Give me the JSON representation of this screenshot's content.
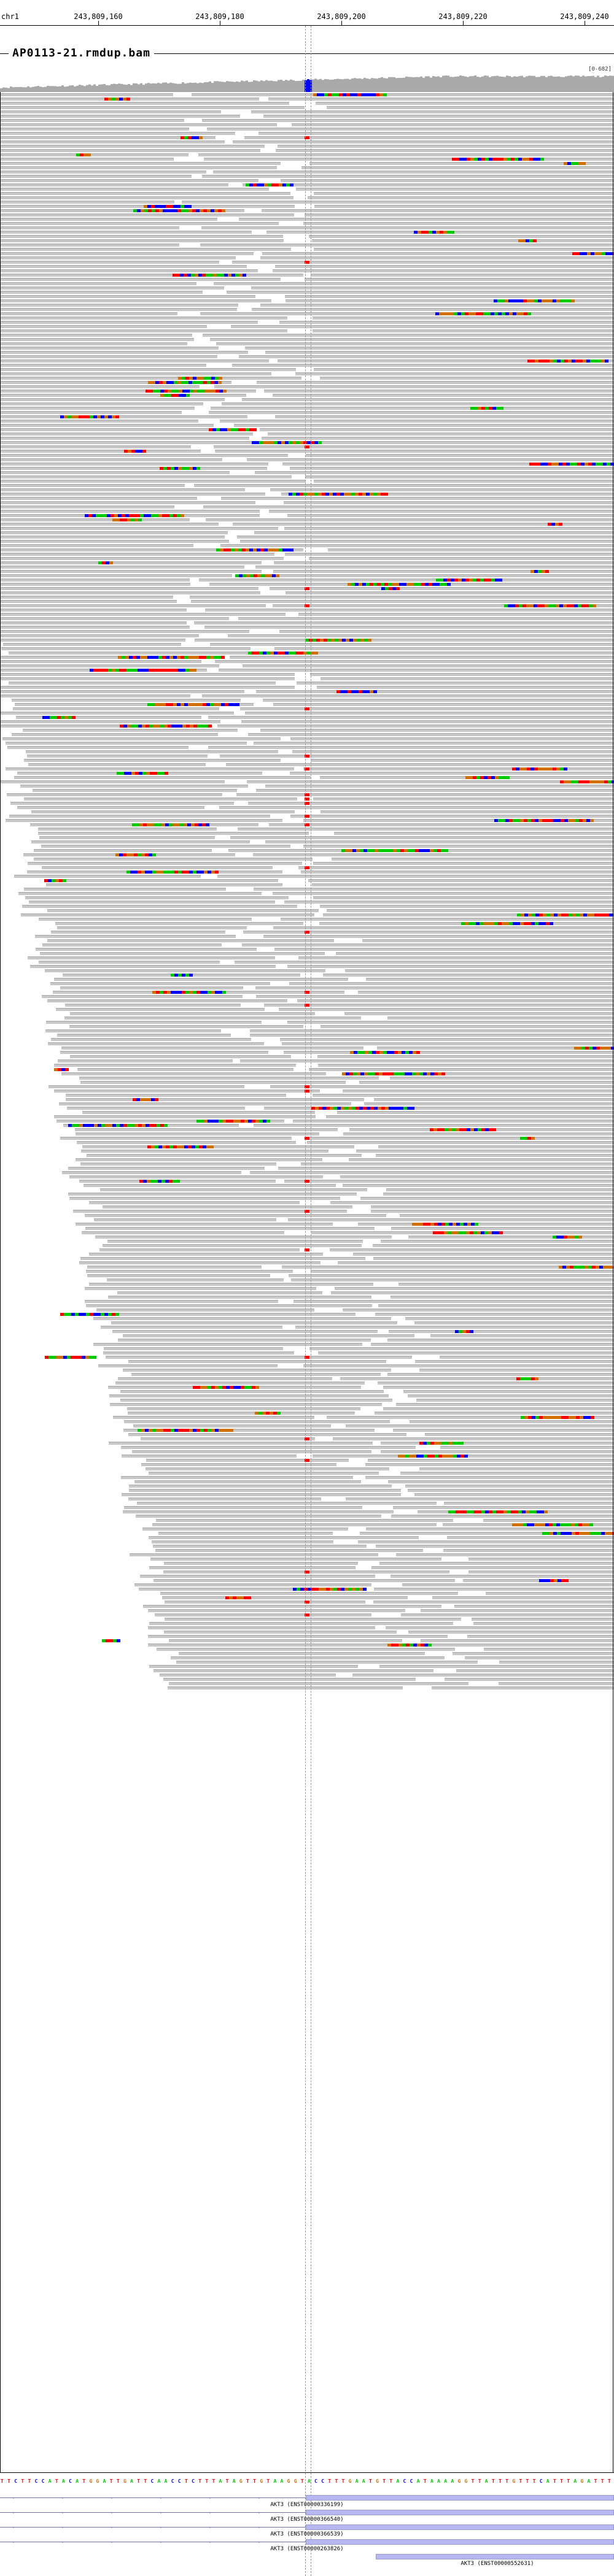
{
  "ruler": {
    "chromosome": "chr1",
    "ticks": [
      "243,809,160",
      "243,809,180",
      "243,809,200",
      "243,809,220",
      "243,809,240"
    ]
  },
  "track": {
    "title": "AP0113-21.rmdup.bam",
    "coverage_max": "[0-682]"
  },
  "colors": {
    "read": "#c8c8c8",
    "read_border": "#a8a8a8",
    "A": "#00cc00",
    "C": "#0000ff",
    "G": "#d17105",
    "T": "#ff0000",
    "coverage": "#a9a9a9"
  },
  "sequence": "TTCTTCCATACATGGATTGATTCAACCTCTTTATAGTTGTAAGGTACCTTTGAATGTTACCATAAAAGGTTATTTGTTTCATTTAGATTT",
  "genes": [
    {
      "label": "AKT3 (ENST00000336199)"
    },
    {
      "label": "AKT3 (ENST00000366540)"
    },
    {
      "label": "AKT3 (ENST00000366539)"
    },
    {
      "label": "AKT3 (ENST00000263826)"
    },
    {
      "label": "AKT3 (ENST00000552631)"
    }
  ]
}
